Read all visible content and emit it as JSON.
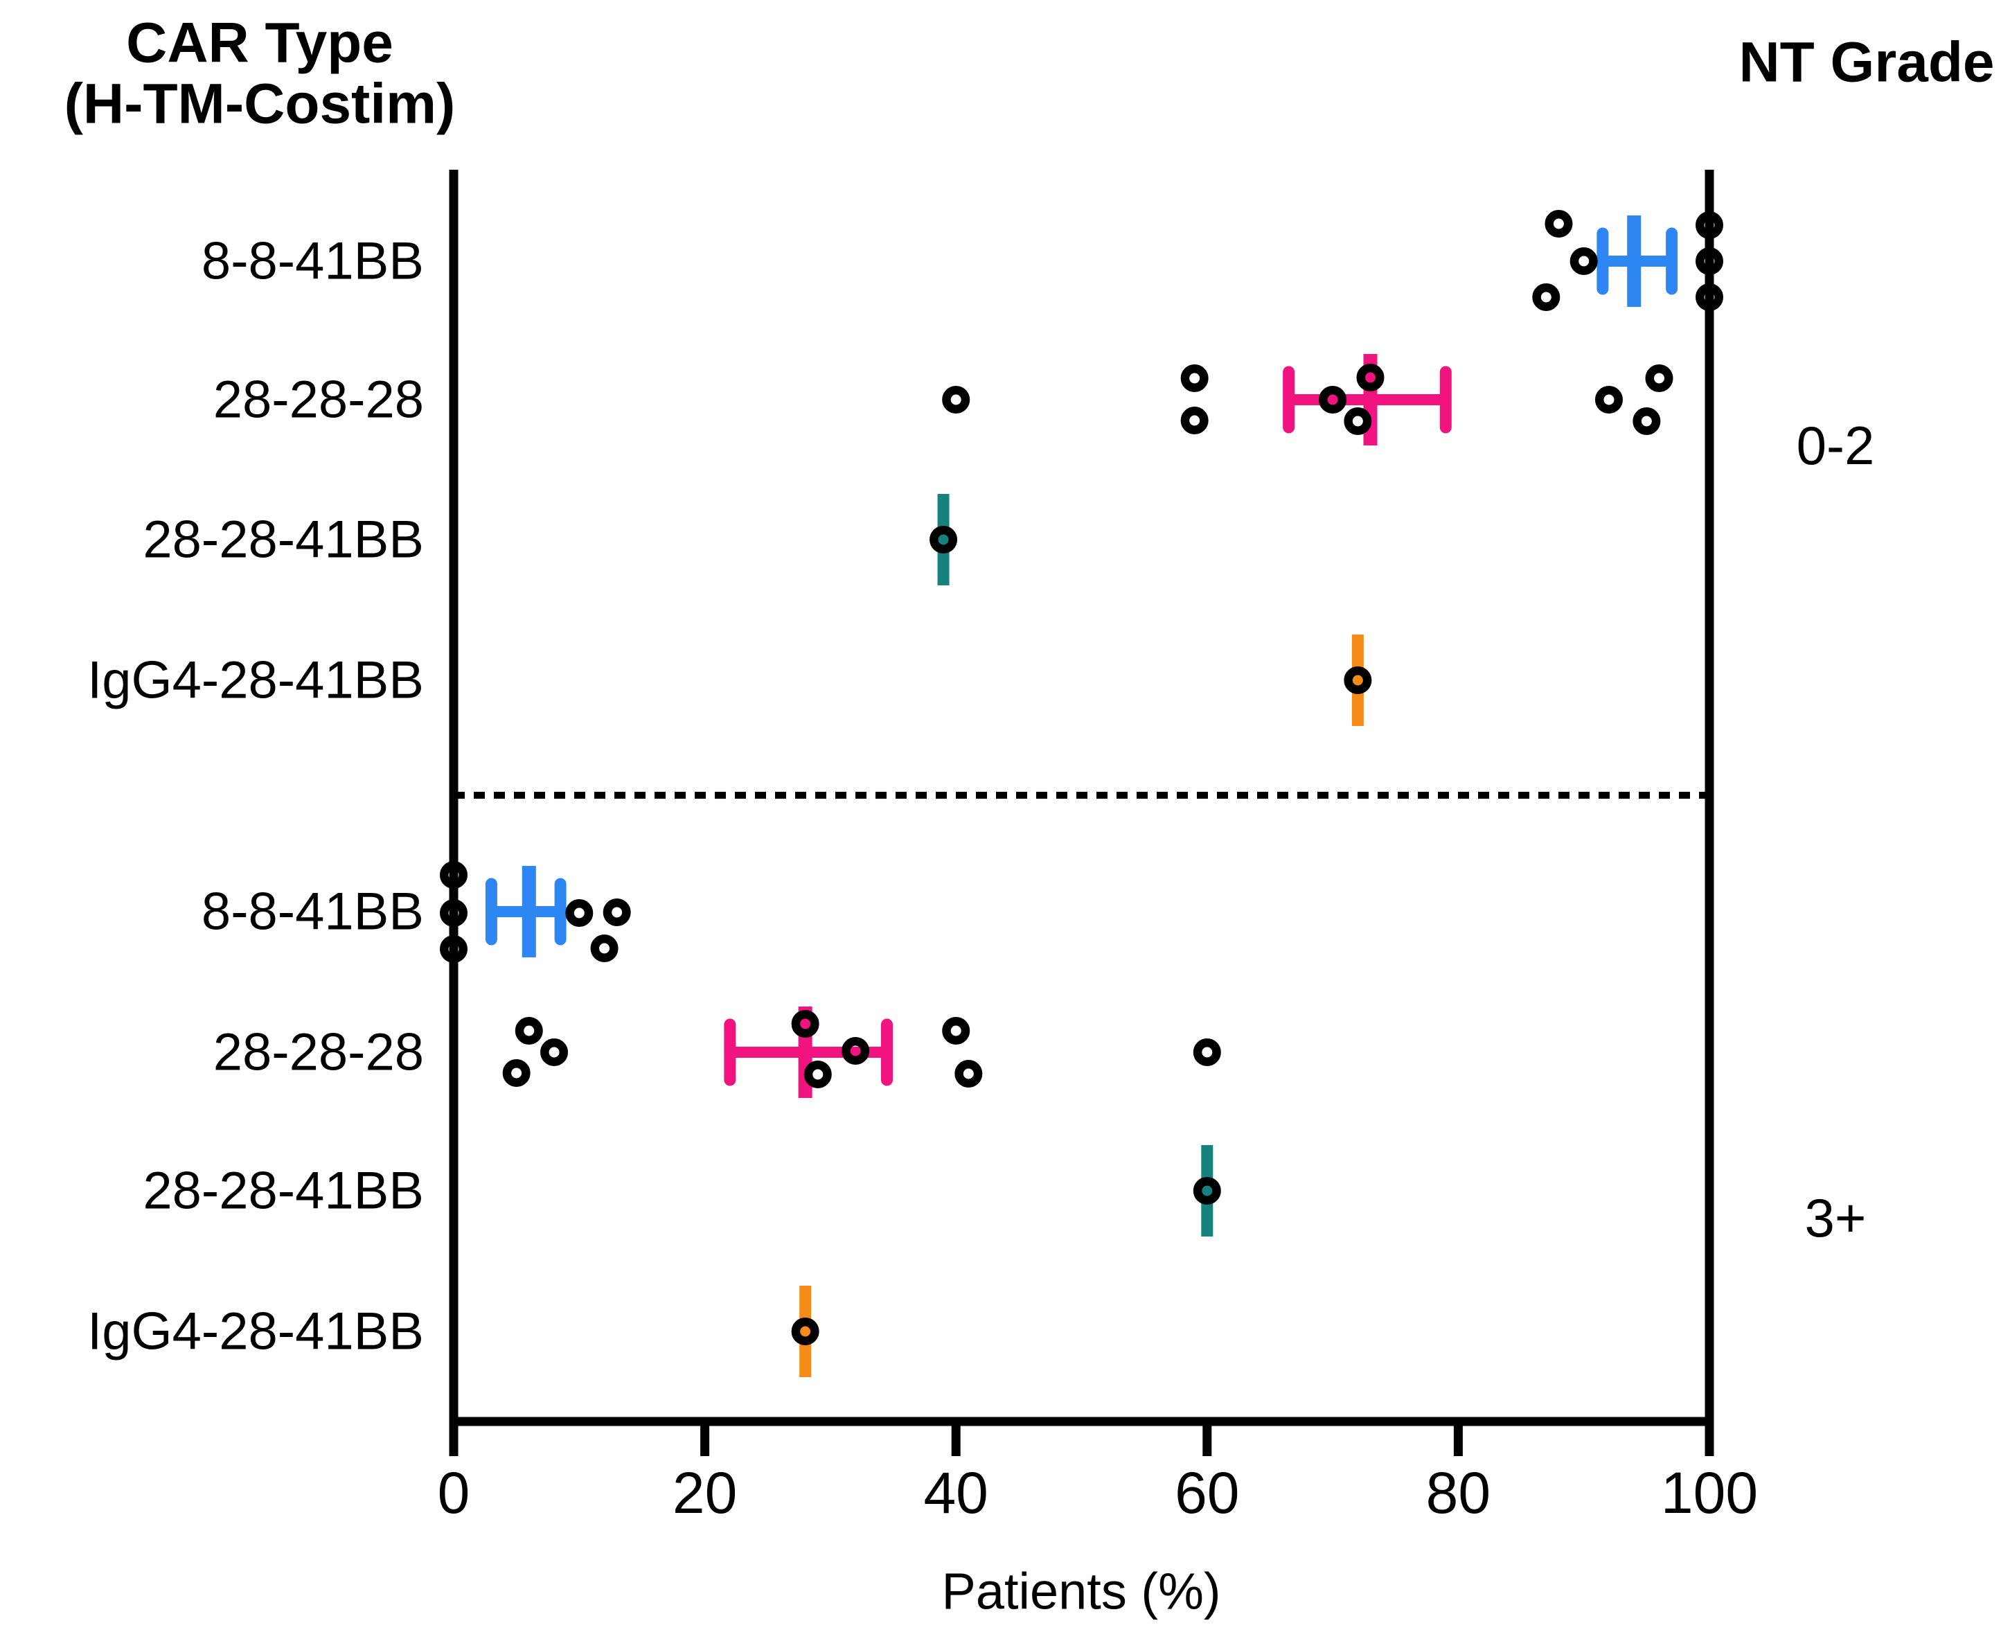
{
  "figure": {
    "title_line1": "CAR Type",
    "title_line2": "(H-TM-Costim)",
    "right_header": "NT Grade",
    "xlabel": "Patients (%)",
    "colors": {
      "blue": "#2E86F2",
      "pink": "#F01380",
      "teal": "#17817E",
      "orange": "#F78B17",
      "axis": "#000000",
      "background": "#FFFFFF"
    }
  },
  "chart_data": {
    "type": "scatter",
    "subtype": "horizontal-dotplot-with-mean-ci",
    "title": "CAR Type (H-TM-Costim)",
    "xlabel": "Patients (%)",
    "right_axis_title": "NT Grade",
    "xlim": [
      0,
      100
    ],
    "xticks": [
      0,
      20,
      40,
      60,
      80,
      100
    ],
    "grid": false,
    "marker": "open-circle",
    "groups": [
      {
        "nt_grade": "0-2",
        "rows": [
          {
            "label": "8-8-41BB",
            "color_key": "blue",
            "points": [
              88,
              90,
              87,
              100,
              100,
              100
            ],
            "mean": 94,
            "ci": [
              91.5,
              97
            ]
          },
          {
            "label": "28-28-28",
            "color_key": "pink",
            "points": [
              40,
              59,
              59,
              73,
              70,
              72,
              96,
              92,
              95
            ],
            "mean": 73,
            "ci": [
              66.5,
              79
            ]
          },
          {
            "label": "28-28-41BB",
            "color_key": "teal",
            "points": [
              39
            ],
            "mean": 39,
            "ci": null
          },
          {
            "label": "IgG4-28-41BB",
            "color_key": "orange",
            "points": [
              72
            ],
            "mean": 72,
            "ci": null
          }
        ]
      },
      {
        "nt_grade": "3+",
        "rows": [
          {
            "label": "8-8-41BB",
            "color_key": "blue",
            "points": [
              0,
              0,
              0,
              10,
              13,
              12
            ],
            "mean": 6,
            "ci": [
              3,
              8.5
            ]
          },
          {
            "label": "28-28-28",
            "color_key": "pink",
            "points": [
              6,
              8,
              5,
              28,
              32,
              29,
              40,
              41,
              60
            ],
            "mean": 28,
            "ci": [
              22,
              34.5
            ]
          },
          {
            "label": "28-28-41BB",
            "color_key": "teal",
            "points": [
              60
            ],
            "mean": 60,
            "ci": null
          },
          {
            "label": "IgG4-28-41BB",
            "color_key": "orange",
            "points": [
              28
            ],
            "mean": 28,
            "ci": null
          }
        ]
      }
    ]
  }
}
